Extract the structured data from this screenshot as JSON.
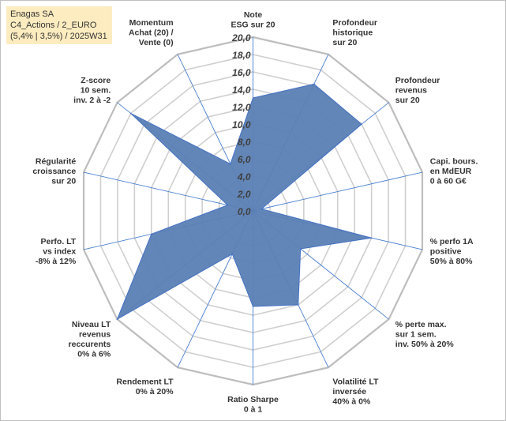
{
  "title_box": {
    "line1": "Enagas SA",
    "line2": "C4_Actions / 2_EURO",
    "line3": "(5,4% | 3,5%) / 2025W31"
  },
  "colors": {
    "fill": "#5b7fb4",
    "stroke": "#4472c4",
    "grid": "#cfcfcf",
    "axis": "#4a7fd0",
    "title_bg": "#fcecc0"
  },
  "chart_data": {
    "type": "radar",
    "rmin": 0,
    "rmax": 20,
    "tick_step": 2,
    "tick_labels": [
      "0,0",
      "2,0",
      "4,0",
      "6,0",
      "8,0",
      "10,0",
      "12,0",
      "14,0",
      "16,0",
      "18,0",
      "20,0"
    ],
    "axes": [
      {
        "label": [
          "Note",
          "ESG sur 20"
        ],
        "value": 13.0
      },
      {
        "label": [
          "Profondeur",
          "historique",
          "sur 20"
        ],
        "value": 16.2
      },
      {
        "label": [
          "Profondeur",
          "revenus",
          "sur 20"
        ],
        "value": 16.0
      },
      {
        "label": [
          "Capi. bours.",
          "en MdEUR",
          "0 à 60 G€"
        ],
        "value": 1.0
      },
      {
        "label": [
          "% perfo 1A",
          "positive",
          "50% à 80%"
        ],
        "value": 14.0
      },
      {
        "label": [
          "% perte max.",
          "sur 1 sem.",
          "inv. 50% à 20%"
        ],
        "value": 7.0
      },
      {
        "label": [
          "Volatilité LT",
          "inversée",
          "40% à 0%"
        ],
        "value": 12.0
      },
      {
        "label": [
          "Ratio Sharpe",
          "0 à 1"
        ],
        "value": 11.0
      },
      {
        "label": [
          "Rendement LT",
          "0% à 20%"
        ],
        "value": 5.5
      },
      {
        "label": [
          "Niveau LT",
          "revenus",
          "reccurents",
          "0% à 6%"
        ],
        "value": 20.0
      },
      {
        "label": [
          "Perfo. LT",
          "vs index",
          "-8% à 12%"
        ],
        "value": 12.0
      },
      {
        "label": [
          "Régularité",
          "croissance",
          "sur 20"
        ],
        "value": 3.0
      },
      {
        "label": [
          "Z-score",
          "10 sem.",
          "inv. 2 à -2"
        ],
        "value": 18.0
      },
      {
        "label": [
          "Momentum",
          "Achat (20) /",
          "Vente (0)"
        ],
        "value": 6.0
      }
    ]
  }
}
